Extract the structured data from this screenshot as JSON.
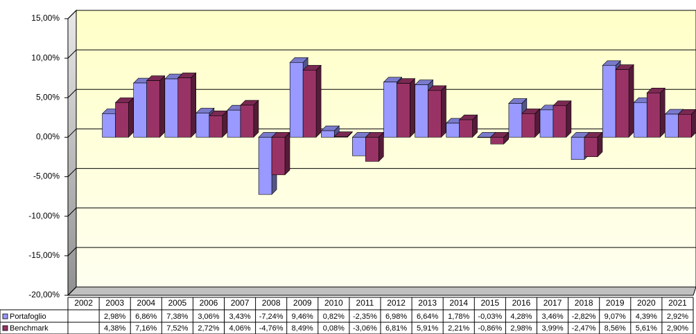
{
  "chart_data": {
    "type": "bar3d",
    "categories": [
      "2002",
      "2003",
      "2004",
      "2005",
      "2006",
      "2007",
      "2008",
      "2009",
      "2010",
      "2011",
      "2012",
      "2013",
      "2014",
      "2015",
      "2016",
      "2017",
      "2018",
      "2019",
      "2020",
      "2021"
    ],
    "series": [
      {
        "name": "Portafoglio",
        "color": "#9999ff",
        "values": [
          null,
          2.98,
          6.86,
          7.38,
          3.06,
          3.43,
          -7.24,
          9.46,
          0.82,
          -2.35,
          6.98,
          6.64,
          1.78,
          -0.03,
          4.28,
          3.46,
          -2.82,
          9.07,
          4.39,
          2.92
        ],
        "value_labels": [
          null,
          "2,98%",
          "6,86%",
          "7,38%",
          "3,06%",
          "3,43%",
          "-7,24%",
          "9,46%",
          "0,82%",
          "-2,35%",
          "6,98%",
          "6,64%",
          "1,78%",
          "-0,03%",
          "4,28%",
          "3,46%",
          "-2,82%",
          "9,07%",
          "4,39%",
          "2,92%"
        ]
      },
      {
        "name": "Benchmark",
        "color": "#993366",
        "values": [
          null,
          4.38,
          7.16,
          7.52,
          2.72,
          4.06,
          -4.76,
          8.49,
          0.08,
          -3.06,
          6.81,
          5.91,
          2.21,
          -0.86,
          2.98,
          3.99,
          -2.47,
          8.56,
          5.61,
          2.9
        ],
        "value_labels": [
          null,
          "4,38%",
          "7,16%",
          "7,52%",
          "2,72%",
          "4,06%",
          "-4,76%",
          "8,49%",
          "0,08%",
          "-3,06%",
          "6,81%",
          "5,91%",
          "2,21%",
          "-0,86%",
          "2,98%",
          "3,99%",
          "-2,47%",
          "8,56%",
          "5,61%",
          "2,90%"
        ]
      }
    ],
    "ylim": [
      -20,
      15
    ],
    "yticks": [
      {
        "value": -20,
        "label": "-20,00%"
      },
      {
        "value": -15,
        "label": "-15,00%"
      },
      {
        "value": -10,
        "label": "-10,00%"
      },
      {
        "value": -5,
        "label": "-5,00%"
      },
      {
        "value": 0,
        "label": "0,00%"
      },
      {
        "value": 5,
        "label": "5,00%"
      },
      {
        "value": 10,
        "label": "10,00%"
      },
      {
        "value": 15,
        "label": "15,00%"
      }
    ],
    "grid": true
  }
}
